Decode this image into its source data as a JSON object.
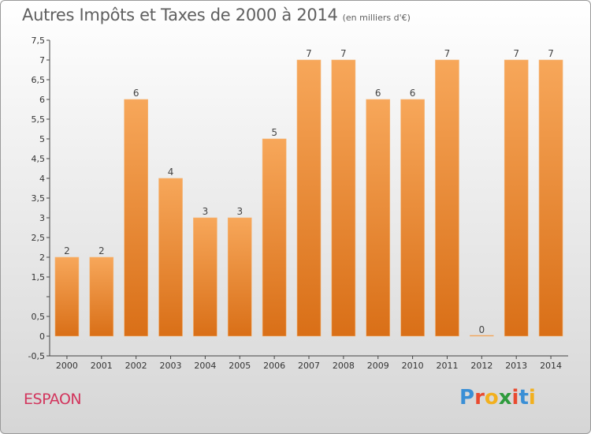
{
  "chart_data": {
    "type": "bar",
    "title": "Autres Impôts et Taxes de 2000 à 2014",
    "subtitle": "(en milliers d'€)",
    "categories": [
      "2000",
      "2001",
      "2002",
      "2003",
      "2004",
      "2005",
      "2006",
      "2007",
      "2008",
      "2009",
      "2010",
      "2011",
      "2012",
      "2013",
      "2014"
    ],
    "values": [
      2,
      2,
      6,
      4,
      3,
      3,
      5,
      7,
      7,
      6,
      6,
      7,
      0,
      7,
      7
    ],
    "data_labels": [
      "2",
      "2",
      "6",
      "4",
      "3",
      "3",
      "5",
      "7",
      "7",
      "6",
      "6",
      "7",
      "0",
      "7",
      "7"
    ],
    "ylim": [
      -0.5,
      7.5
    ],
    "yticks": [
      -0.5,
      0,
      0.5,
      1,
      1.5,
      2,
      2.5,
      3,
      3.5,
      4,
      4.5,
      5,
      5.5,
      6,
      6.5,
      7,
      7.5
    ],
    "ytick_labels": [
      "-0,5",
      "0",
      "0,5",
      "",
      "1,5",
      "2",
      "2,5",
      "3",
      "3,5",
      "4",
      "4,5",
      "5",
      "5,5",
      "6",
      "6,5",
      "7",
      "7,5"
    ],
    "grid": false,
    "bar_color": "#f08c2e",
    "bar_color_light": "#f7a75a",
    "bar_color_dark": "#d96f17"
  },
  "footer": {
    "commune": "ESPAON",
    "logo_letters": [
      "P",
      "r",
      "o",
      "x",
      "i",
      "t",
      "i"
    ],
    "logo_colors": [
      "#3a8fd6",
      "#e94a2f",
      "#f2b01e",
      "#2e9b3d",
      "#e94a2f",
      "#3a8fd6",
      "#f2b01e"
    ]
  }
}
